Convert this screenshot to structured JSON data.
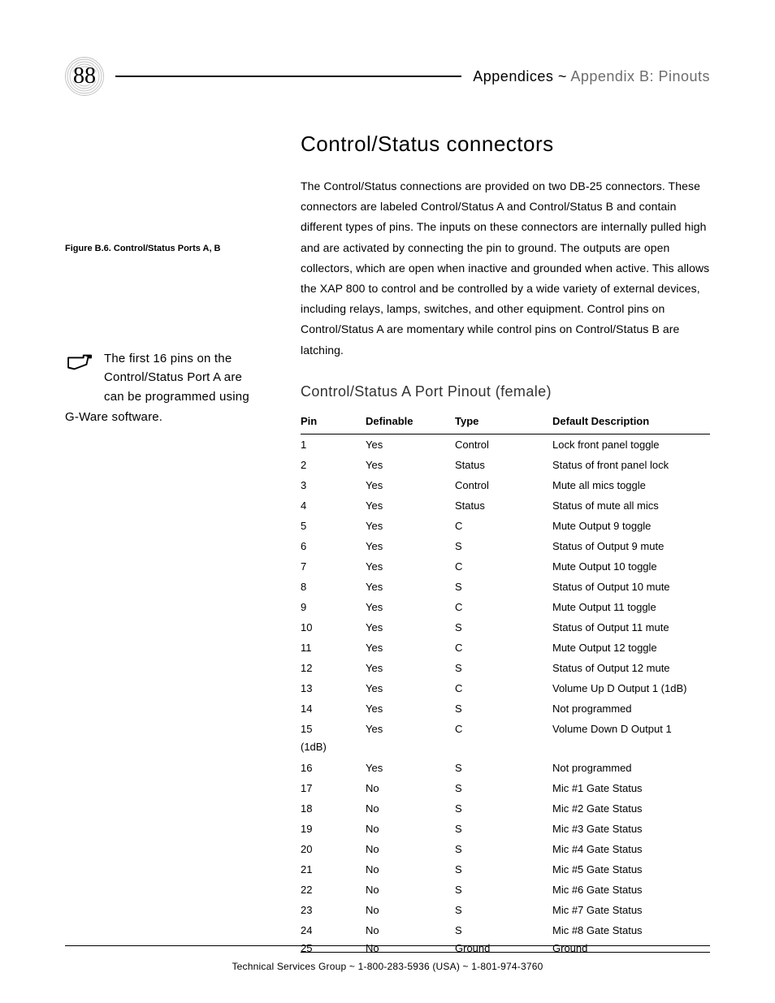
{
  "page": {
    "number": "88",
    "appendix_bold": "Appendices ~",
    "appendix_thin": " Appendix B: Pinouts"
  },
  "side": {
    "figure_caption": "Figure B.6. Control/Status Ports A, B",
    "note_line1": "The first 16 pins on the",
    "note_line2": "Control/Status Port A are",
    "note_line3": "can be programmed using",
    "note_line4": "G-Ware software."
  },
  "main": {
    "title": "Control/Status connectors",
    "paragraph": "The Control/Status connections are provided on two DB-25 connectors. These connectors are labeled Control/Status A and Control/Status B and contain different types of pins. The inputs on these connectors are internally pulled high and are activated by connecting the pin to ground. The outputs are open collectors, which are open when inactive and grounded when active. This allows the XAP 800 to control and be controlled by a wide variety of external devices, including relays, lamps, switches, and other equipment. Control pins on Control/Status A are momentary while control pins on Control/Status B are latching.",
    "subsection": "Control/Status A Port Pinout (female)"
  },
  "table": {
    "headers": {
      "pin": "Pin",
      "definable": "Definable",
      "type": "Type",
      "desc": "Default Description"
    },
    "rows": [
      {
        "pin": "1",
        "def": "Yes",
        "type": "Control",
        "desc": "Lock front panel toggle"
      },
      {
        "pin": "2",
        "def": "Yes",
        "type": "Status",
        "desc": "Status of front panel lock"
      },
      {
        "pin": "3",
        "def": "Yes",
        "type": "Control",
        "desc": "Mute all mics toggle"
      },
      {
        "pin": "4",
        "def": "Yes",
        "type": "Status",
        "desc": "Status of mute all mics"
      },
      {
        "pin": "5",
        "def": "Yes",
        "type": "C",
        "desc": "Mute Output 9 toggle"
      },
      {
        "pin": "6",
        "def": "Yes",
        "type": "S",
        "desc": "Status of Output 9 mute"
      },
      {
        "pin": "7",
        "def": "Yes",
        "type": "C",
        "desc": "Mute Output 10 toggle"
      },
      {
        "pin": "8",
        "def": "Yes",
        "type": "S",
        "desc": "Status of Output 10 mute"
      },
      {
        "pin": "9",
        "def": "Yes",
        "type": "C",
        "desc": "Mute Output 11 toggle"
      },
      {
        "pin": "10",
        "def": "Yes",
        "type": "S",
        "desc": "Status of Output 11 mute"
      },
      {
        "pin": "11",
        "def": "Yes",
        "type": "C",
        "desc": "Mute Output 12 toggle"
      },
      {
        "pin": "12",
        "def": "Yes",
        "type": "S",
        "desc": "Status of Output 12 mute"
      },
      {
        "pin": "13",
        "def": "Yes",
        "type": "C",
        "desc": "Volume Up D Output 1 (1dB)"
      },
      {
        "pin": "14",
        "def": "Yes",
        "type": "S",
        "desc": "Not programmed"
      },
      {
        "pin": "15",
        "def": "Yes",
        "type": "C",
        "desc": "Volume Down D Output 1"
      },
      {
        "pin": "16",
        "def": "Yes",
        "type": "S",
        "desc": "Not programmed"
      },
      {
        "pin": "17",
        "def": "No",
        "type": "S",
        "desc": "Mic #1 Gate Status"
      },
      {
        "pin": "18",
        "def": "No",
        "type": "S",
        "desc": "Mic #2 Gate Status"
      },
      {
        "pin": "19",
        "def": "No",
        "type": "S",
        "desc": "Mic #3 Gate Status"
      },
      {
        "pin": "20",
        "def": "No",
        "type": "S",
        "desc": "Mic #4 Gate Status"
      },
      {
        "pin": "21",
        "def": "No",
        "type": "S",
        "desc": "Mic #5 Gate Status"
      },
      {
        "pin": "22",
        "def": "No",
        "type": "S",
        "desc": "Mic #6 Gate Status"
      },
      {
        "pin": "23",
        "def": "No",
        "type": "S",
        "desc": "Mic #7 Gate Status"
      },
      {
        "pin": "24",
        "def": "No",
        "type": "S",
        "desc": "Mic #8 Gate Status"
      },
      {
        "pin": "25",
        "def": "No",
        "type": "Ground",
        "desc": "Ground"
      }
    ],
    "row15_extra": "(1dB)"
  },
  "footer": {
    "text": "Technical Services Group ~ 1-800-283-5936 (USA) ~ 1-801-974-3760"
  }
}
